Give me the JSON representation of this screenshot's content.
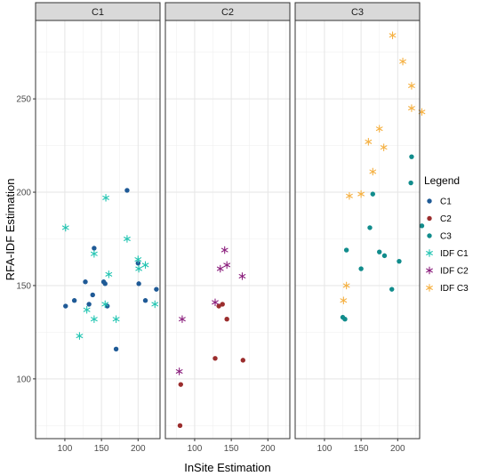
{
  "chart_data": {
    "type": "scatter",
    "xlabel": "InSite Estimation",
    "ylabel": "RFA-IDF Estimation",
    "xlim": [
      60,
      230
    ],
    "ylim": [
      68,
      292
    ],
    "x_ticks": [
      100,
      150,
      200
    ],
    "y_ticks": [
      100,
      150,
      200,
      250
    ],
    "grid": true,
    "legend": {
      "title": "Legend",
      "position": "right"
    },
    "facets": [
      "C1",
      "C2",
      "C3"
    ],
    "series": [
      {
        "name": "C1",
        "facet": "C1",
        "marker": "dot",
        "color": "#1f5a96",
        "x": [
          101,
          113,
          128,
          133,
          138,
          140,
          153,
          155,
          158,
          170,
          185,
          200,
          201,
          210,
          225
        ],
        "y": [
          139,
          142,
          152,
          140,
          145,
          170,
          152,
          151,
          139,
          116,
          201,
          162,
          151,
          142,
          148
        ]
      },
      {
        "name": "C2",
        "facet": "C2",
        "marker": "dot",
        "color": "#9b2d2d",
        "x": [
          80,
          81,
          128,
          133,
          138,
          144,
          166
        ],
        "y": [
          75,
          97,
          111,
          139,
          140,
          132,
          110
        ]
      },
      {
        "name": "C3",
        "facet": "C3",
        "marker": "dot",
        "color": "#118c8c",
        "x": [
          125,
          128,
          130,
          150,
          162,
          166,
          175,
          182,
          192,
          202,
          218,
          219,
          233
        ],
        "y": [
          133,
          132,
          169,
          159,
          181,
          199,
          168,
          166,
          148,
          163,
          205,
          219,
          182
        ]
      },
      {
        "name": "IDF C1",
        "facet": "C1",
        "marker": "asterisk",
        "color": "#20c4b1",
        "x": [
          101,
          120,
          130,
          140,
          140,
          155,
          156,
          160,
          170,
          185,
          200,
          201,
          210,
          223
        ],
        "y": [
          181,
          123,
          137,
          132,
          167,
          140,
          197,
          156,
          132,
          175,
          164,
          159,
          161,
          140
        ]
      },
      {
        "name": "IDF C2",
        "facet": "C2",
        "marker": "asterisk",
        "color": "#8b1f7d",
        "x": [
          79,
          83,
          128,
          135,
          141,
          144,
          165
        ],
        "y": [
          104,
          132,
          141,
          159,
          169,
          161,
          155
        ]
      },
      {
        "name": "IDF C3",
        "facet": "C3",
        "marker": "asterisk",
        "color": "#f5b041",
        "x": [
          126,
          130,
          134,
          150,
          160,
          166,
          175,
          181,
          193,
          207,
          219,
          219,
          233
        ],
        "y": [
          142,
          150,
          198,
          199,
          227,
          211,
          234,
          224,
          284,
          270,
          257,
          245,
          243
        ]
      }
    ]
  }
}
